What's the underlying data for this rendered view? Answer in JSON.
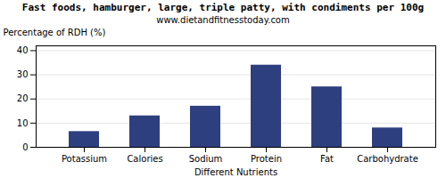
{
  "chart_data": {
    "type": "bar",
    "title": "Fast foods, hamburger, large, triple patty, with condiments per 100g",
    "subtitle": "www.dietandfitnesstoday.com",
    "categories": [
      "Potassium",
      "Calories",
      "Sodium",
      "Protein",
      "Fat",
      "Carbohydrate"
    ],
    "values": [
      6.5,
      13.0,
      17.0,
      34.0,
      25.0,
      8.0
    ],
    "color": "#2e3f7f",
    "xlabel": "Different Nutrients",
    "ylabel": "Percentage of RDH (%)",
    "ylim": [
      0,
      42
    ],
    "yticks": [
      0,
      10,
      20,
      30,
      40
    ],
    "grid": true
  }
}
